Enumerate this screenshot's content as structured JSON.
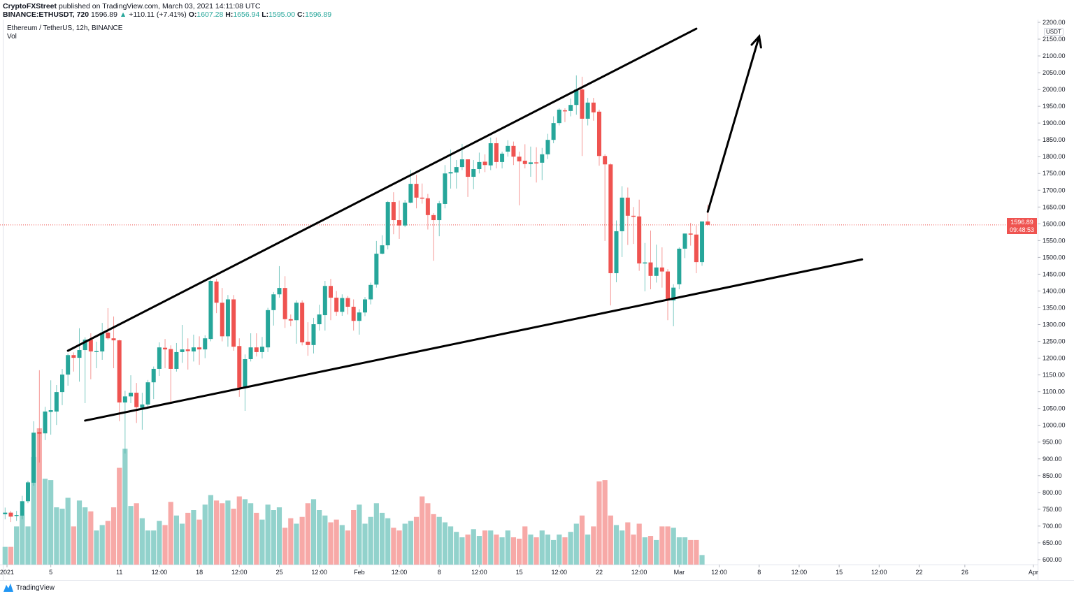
{
  "header": {
    "publisher": "CryptoFXStreet",
    "published_text": "published on TradingView.com, March 03, 2021 14:11:08 UTC",
    "symbol": "BINANCE:ETHUSDT, 720",
    "last": "1596.89",
    "change": "+110.11 (+7.41%)",
    "o_label": "O:",
    "o": "1607.28",
    "h_label": "H:",
    "h": "1656.94",
    "l_label": "L:",
    "l": "1595.00",
    "c_label": "C:",
    "c": "1596.89"
  },
  "legend": {
    "title": "Ethereum / TetherUS, 12h, BINANCE",
    "volume": "Vol"
  },
  "price_label": {
    "price": "1596.89",
    "countdown": "09:48:53",
    "currency": "USDT"
  },
  "footer": {
    "brand": "TradingView"
  },
  "colors": {
    "up": "#26a69a",
    "down": "#ef5350",
    "vol_up": "#92d2cc",
    "vol_down": "#f7a9a7",
    "drawing": "#000000"
  },
  "chart_data": {
    "type": "candlestick",
    "interval": "12h",
    "start": "2021-01-01 00:00",
    "ylim": [
      590,
      2210
    ],
    "y_ticks": [
      2200,
      2150,
      2100,
      2050,
      2000,
      1950,
      1900,
      1850,
      1800,
      1750,
      1700,
      1650,
      1600,
      1550,
      1500,
      1450,
      1400,
      1350,
      1300,
      1250,
      1200,
      1150,
      1100,
      1050,
      1000,
      950,
      900,
      850,
      800,
      750,
      700,
      650,
      600
    ],
    "x_ticks": [
      {
        "label": "2021",
        "date": "2021-01-01 00:00"
      },
      {
        "label": "5",
        "date": "2021-01-05 00:00"
      },
      {
        "label": "11",
        "date": "2021-01-11 00:00"
      },
      {
        "label": "12:00",
        "date": "2021-01-14 12:00"
      },
      {
        "label": "18",
        "date": "2021-01-18 00:00"
      },
      {
        "label": "12:00",
        "date": "2021-01-21 12:00"
      },
      {
        "label": "25",
        "date": "2021-01-25 00:00"
      },
      {
        "label": "12:00",
        "date": "2021-01-28 12:00"
      },
      {
        "label": "Feb",
        "date": "2021-02-01 00:00"
      },
      {
        "label": "12:00",
        "date": "2021-02-04 12:00"
      },
      {
        "label": "8",
        "date": "2021-02-08 00:00"
      },
      {
        "label": "12:00",
        "date": "2021-02-11 12:00"
      },
      {
        "label": "15",
        "date": "2021-02-15 00:00"
      },
      {
        "label": "12:00",
        "date": "2021-02-18 12:00"
      },
      {
        "label": "22",
        "date": "2021-02-22 00:00"
      },
      {
        "label": "12:00",
        "date": "2021-02-25 12:00"
      },
      {
        "label": "Mar",
        "date": "2021-03-01 00:00"
      },
      {
        "label": "12:00",
        "date": "2021-03-04 12:00"
      },
      {
        "label": "8",
        "date": "2021-03-08 00:00"
      },
      {
        "label": "12:00",
        "date": "2021-03-11 12:00"
      },
      {
        "label": "15",
        "date": "2021-03-15 00:00"
      },
      {
        "label": "12:00",
        "date": "2021-03-18 12:00"
      },
      {
        "label": "22",
        "date": "2021-03-22 00:00"
      },
      {
        "label": "26",
        "date": "2021-03-26 00:00"
      },
      {
        "label": "Apr",
        "date": "2021-04-01 00:00"
      }
    ],
    "ohlc": [
      [
        735,
        755,
        720,
        740
      ],
      [
        740,
        745,
        712,
        728
      ],
      [
        730,
        745,
        715,
        733
      ],
      [
        731,
        790,
        720,
        774
      ],
      [
        774,
        835,
        768,
        830
      ],
      [
        829,
        1012,
        820,
        978
      ],
      [
        980,
        1164,
        889,
        975
      ],
      [
        976,
        1055,
        956,
        1041
      ],
      [
        1040,
        1134,
        972,
        1045
      ],
      [
        1041,
        1120,
        1001,
        1099
      ],
      [
        1099,
        1168,
        1060,
        1151
      ],
      [
        1151,
        1214,
        1118,
        1209
      ],
      [
        1209,
        1217,
        1160,
        1201
      ],
      [
        1201,
        1289,
        1130,
        1224
      ],
      [
        1224,
        1262,
        1066,
        1255
      ],
      [
        1255,
        1274,
        1137,
        1220
      ],
      [
        1219,
        1249,
        1170,
        1221
      ],
      [
        1220,
        1305,
        1195,
        1276
      ],
      [
        1276,
        1349,
        1255,
        1259
      ],
      [
        1259,
        1324,
        1170,
        1253
      ],
      [
        1253,
        1255,
        1012,
        1068
      ],
      [
        1068,
        1103,
        916,
        1086
      ],
      [
        1086,
        1149,
        1066,
        1097
      ],
      [
        1097,
        1126,
        1007,
        1054
      ],
      [
        1052,
        1097,
        987,
        1062
      ],
      [
        1062,
        1135,
        1049,
        1128
      ],
      [
        1128,
        1175,
        1078,
        1168
      ],
      [
        1168,
        1247,
        1147,
        1232
      ],
      [
        1231,
        1257,
        1170,
        1226
      ],
      [
        1227,
        1238,
        1070,
        1168
      ],
      [
        1168,
        1245,
        1160,
        1218
      ],
      [
        1218,
        1299,
        1186,
        1226
      ],
      [
        1226,
        1259,
        1166,
        1221
      ],
      [
        1220,
        1270,
        1190,
        1232
      ],
      [
        1232,
        1265,
        1180,
        1226
      ],
      [
        1226,
        1268,
        1200,
        1259
      ],
      [
        1257,
        1434,
        1250,
        1430
      ],
      [
        1428,
        1436,
        1334,
        1365
      ],
      [
        1365,
        1409,
        1250,
        1265
      ],
      [
        1265,
        1388,
        1234,
        1375
      ],
      [
        1375,
        1388,
        1222,
        1234
      ],
      [
        1236,
        1259,
        1085,
        1112
      ],
      [
        1112,
        1211,
        1043,
        1197
      ],
      [
        1197,
        1274,
        1190,
        1232
      ],
      [
        1232,
        1274,
        1205,
        1218
      ],
      [
        1218,
        1263,
        1199,
        1234
      ],
      [
        1232,
        1350,
        1218,
        1343
      ],
      [
        1343,
        1397,
        1297,
        1390
      ],
      [
        1390,
        1474,
        1380,
        1409
      ],
      [
        1409,
        1444,
        1290,
        1316
      ],
      [
        1316,
        1330,
        1295,
        1312
      ],
      [
        1313,
        1372,
        1243,
        1365
      ],
      [
        1365,
        1372,
        1238,
        1247
      ],
      [
        1249,
        1307,
        1207,
        1239
      ],
      [
        1239,
        1320,
        1214,
        1301
      ],
      [
        1301,
        1359,
        1282,
        1330
      ],
      [
        1328,
        1430,
        1282,
        1415
      ],
      [
        1415,
        1436,
        1313,
        1380
      ],
      [
        1380,
        1400,
        1326,
        1338
      ],
      [
        1338,
        1390,
        1326,
        1379
      ],
      [
        1379,
        1385,
        1330,
        1353
      ],
      [
        1353,
        1375,
        1282,
        1311
      ],
      [
        1311,
        1346,
        1270,
        1336
      ],
      [
        1336,
        1382,
        1325,
        1375
      ],
      [
        1375,
        1425,
        1360,
        1418
      ],
      [
        1419,
        1549,
        1410,
        1511
      ],
      [
        1511,
        1566,
        1509,
        1536
      ],
      [
        1536,
        1668,
        1524,
        1665
      ],
      [
        1665,
        1694,
        1569,
        1611
      ],
      [
        1611,
        1669,
        1555,
        1595
      ],
      [
        1595,
        1671,
        1590,
        1663
      ],
      [
        1663,
        1761,
        1661,
        1719
      ],
      [
        1719,
        1746,
        1646,
        1678
      ],
      [
        1678,
        1720,
        1660,
        1676
      ],
      [
        1676,
        1689,
        1583,
        1626
      ],
      [
        1626,
        1632,
        1490,
        1611
      ],
      [
        1611,
        1668,
        1563,
        1661
      ],
      [
        1659,
        1775,
        1646,
        1750
      ],
      [
        1750,
        1821,
        1705,
        1754
      ],
      [
        1753,
        1790,
        1705,
        1769
      ],
      [
        1769,
        1838,
        1760,
        1792
      ],
      [
        1792,
        1792,
        1680,
        1740
      ],
      [
        1740,
        1790,
        1703,
        1763
      ],
      [
        1763,
        1812,
        1750,
        1784
      ],
      [
        1785,
        1807,
        1754,
        1775
      ],
      [
        1774,
        1857,
        1760,
        1840
      ],
      [
        1840,
        1857,
        1765,
        1784
      ],
      [
        1784,
        1815,
        1765,
        1809
      ],
      [
        1815,
        1849,
        1800,
        1832
      ],
      [
        1832,
        1845,
        1775,
        1800
      ],
      [
        1800,
        1815,
        1655,
        1786
      ],
      [
        1788,
        1837,
        1765,
        1778
      ],
      [
        1778,
        1830,
        1740,
        1783
      ],
      [
        1783,
        1828,
        1723,
        1780
      ],
      [
        1782,
        1826,
        1730,
        1807
      ],
      [
        1807,
        1868,
        1793,
        1850
      ],
      [
        1850,
        1920,
        1840,
        1900
      ],
      [
        1900,
        1944,
        1893,
        1940
      ],
      [
        1938,
        1944,
        1903,
        1936
      ],
      [
        1936,
        1973,
        1920,
        1954
      ],
      [
        1954,
        2042,
        1925,
        2000
      ],
      [
        2000,
        2038,
        1802,
        1913
      ],
      [
        1913,
        1975,
        1893,
        1961
      ],
      [
        1961,
        1975,
        1907,
        1932
      ],
      [
        1934,
        1940,
        1773,
        1802
      ],
      [
        1802,
        1807,
        1549,
        1777
      ],
      [
        1777,
        1780,
        1357,
        1453
      ],
      [
        1453,
        1610,
        1426,
        1578
      ],
      [
        1578,
        1712,
        1501,
        1678
      ],
      [
        1678,
        1708,
        1537,
        1624
      ],
      [
        1624,
        1650,
        1540,
        1622
      ],
      [
        1622,
        1672,
        1460,
        1482
      ],
      [
        1482,
        1543,
        1399,
        1485
      ],
      [
        1485,
        1580,
        1405,
        1445
      ],
      [
        1445,
        1538,
        1425,
        1470
      ],
      [
        1470,
        1530,
        1410,
        1458
      ],
      [
        1458,
        1465,
        1313,
        1372
      ],
      [
        1372,
        1420,
        1295,
        1410
      ],
      [
        1420,
        1530,
        1405,
        1526
      ],
      [
        1526,
        1571,
        1498,
        1571
      ],
      [
        1571,
        1603,
        1535,
        1568
      ],
      [
        1568,
        1595,
        1453,
        1486
      ],
      [
        1486,
        1607,
        1475,
        1607
      ],
      [
        1607,
        1657,
        1595,
        1597
      ]
    ],
    "volume_pct_of_max": [
      13,
      13,
      28,
      36,
      28,
      79,
      100,
      63,
      62,
      42,
      41,
      49,
      28,
      47,
      42,
      39,
      25,
      29,
      32,
      42,
      71,
      85,
      43,
      45,
      34,
      25,
      25,
      32,
      29,
      46,
      36,
      30,
      38,
      40,
      33,
      44,
      51,
      47,
      45,
      47,
      41,
      50,
      48,
      45,
      38,
      33,
      44,
      40,
      42,
      27,
      34,
      30,
      35,
      45,
      48,
      40,
      36,
      31,
      33,
      29,
      25,
      40,
      44,
      30,
      35,
      45,
      38,
      34,
      27,
      25,
      30,
      32,
      35,
      50,
      45,
      37,
      35,
      31,
      28,
      24,
      20,
      22,
      26,
      21,
      25,
      25,
      22,
      20,
      25,
      20,
      19,
      28,
      22,
      20,
      25,
      22,
      18,
      22,
      20,
      24,
      30,
      36,
      22,
      28,
      61,
      62,
      36,
      29,
      25,
      31,
      22,
      30,
      20,
      21,
      18,
      28,
      28,
      27,
      20,
      20,
      18,
      18,
      7
    ],
    "drawings": [
      {
        "kind": "trendline",
        "from": {
          "date": "2021-01-06 12:00",
          "price": 1222
        },
        "to": {
          "date": "2021-03-02 12:00",
          "price": 2181
        }
      },
      {
        "kind": "trendline",
        "from": {
          "date": "2021-01-08 00:00",
          "price": 1014
        },
        "to": {
          "date": "2021-03-17 00:00",
          "price": 1494
        }
      },
      {
        "kind": "arrow",
        "from": {
          "date": "2021-03-03 12:00",
          "price": 1636
        },
        "to": {
          "date": "2021-03-08 00:00",
          "price": 2158
        }
      }
    ]
  }
}
